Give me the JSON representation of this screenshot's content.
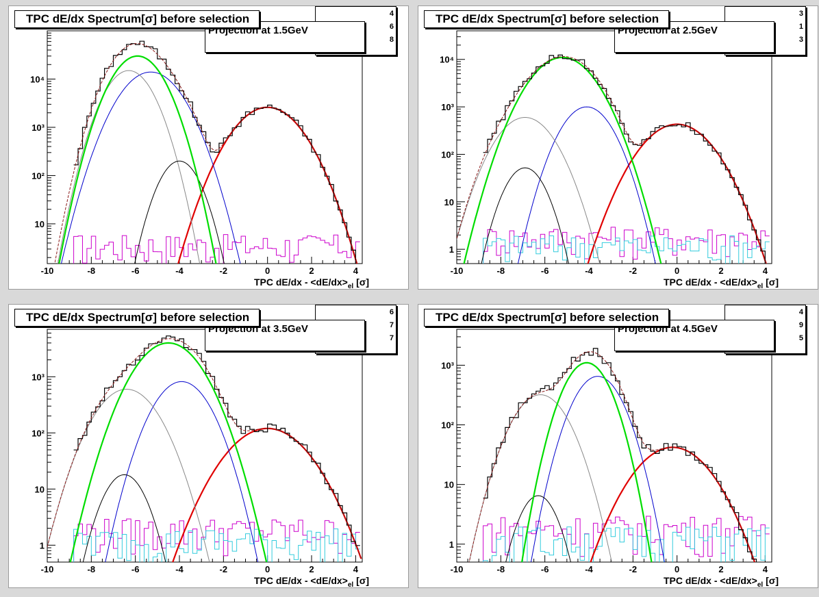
{
  "colors": {
    "data": "#000000",
    "total_fit": "#8b1a1a",
    "electron": "#e00000",
    "kaon": "#0000cc",
    "proton": "#888888",
    "deuteron": "#000000",
    "pion": "#00dd00",
    "magenta": "#cc00cc",
    "cyan": "#33ccdd"
  },
  "panels": [
    {
      "title": "TPC dE/dx Spectrum[σ] before selection",
      "legend_text": "Projection at 1.5GeV",
      "stat_digits": [
        "4",
        "6",
        "8"
      ],
      "xlabel": "TPC dE/dx - <dE/dx>|el [σ]",
      "xlabel_main": "TPC dE/dx - <dE/dx>",
      "xlabel_sub": "el",
      "xlabel_tail": "[σ]"
    },
    {
      "title": "TPC dE/dx Spectrum[σ] before selection",
      "legend_text": "Projection at 2.5GeV",
      "stat_digits": [
        "3",
        "1",
        "3"
      ],
      "xlabel": "TPC dE/dx - <dE/dx>|el [σ]",
      "xlabel_main": "TPC dE/dx - <dE/dx>",
      "xlabel_sub": "el",
      "xlabel_tail": "[σ]"
    },
    {
      "title": "TPC dE/dx Spectrum[σ] before selection",
      "legend_text": "Projection at 3.5GeV",
      "stat_digits": [
        "6",
        "7",
        "7"
      ],
      "xlabel": "TPC dE/dx - <dE/dx>|el [σ]",
      "xlabel_main": "TPC dE/dx - <dE/dx>",
      "xlabel_sub": "el",
      "xlabel_tail": "[σ]"
    },
    {
      "title": "TPC dE/dx Spectrum[σ] before selection",
      "legend_text": "Projection at 4.5GeV",
      "stat_digits": [
        "4",
        "9",
        "5"
      ],
      "xlabel": "TPC dE/dx - <dE/dx>|el [σ]",
      "xlabel_main": "TPC dE/dx - <dE/dx>",
      "xlabel_sub": "el",
      "xlabel_tail": "[σ]"
    }
  ],
  "chart_data": [
    {
      "type": "line",
      "log_y": true,
      "xlim": [
        -10,
        4.3
      ],
      "ylim": [
        1.5,
        100000
      ],
      "xticks": [
        -10,
        -8,
        -6,
        -4,
        -2,
        0,
        2,
        4
      ],
      "yticks": [
        {
          "value": 10,
          "label": "10"
        },
        {
          "value": 100,
          "label": "10²"
        },
        {
          "value": 1000,
          "label": "10³"
        },
        {
          "value": 10000,
          "label": "10⁴"
        }
      ],
      "components": [
        {
          "species": "electron",
          "amp": 2600,
          "mean": 0,
          "sigma": 1.05
        },
        {
          "species": "kaon",
          "amp": 14000,
          "mean": -5.3,
          "sigma": 0.95
        },
        {
          "species": "proton",
          "amp": 15000,
          "mean": -6.3,
          "sigma": 0.75
        },
        {
          "species": "deuteron",
          "amp": 200,
          "mean": -4,
          "sigma": 0.65
        },
        {
          "species": "pion",
          "amp": 30000,
          "mean": -5.9,
          "sigma": 0.8
        }
      ],
      "noise_level": 3
    },
    {
      "type": "line",
      "log_y": true,
      "xlim": [
        -10,
        4.3
      ],
      "ylim": [
        0.5,
        40000
      ],
      "xticks": [
        -10,
        -8,
        -6,
        -4,
        -2,
        0,
        2,
        4
      ],
      "yticks": [
        {
          "value": 1,
          "label": "1"
        },
        {
          "value": 10,
          "label": "10"
        },
        {
          "value": 100,
          "label": "10²"
        },
        {
          "value": 1000,
          "label": "10³"
        },
        {
          "value": 10000,
          "label": "10⁴"
        }
      ],
      "components": [
        {
          "species": "electron",
          "amp": 430,
          "mean": 0,
          "sigma": 1.1
        },
        {
          "species": "kaon",
          "amp": 1000,
          "mean": -4.1,
          "sigma": 0.8
        },
        {
          "species": "proton",
          "amp": 600,
          "mean": -6.9,
          "sigma": 0.9
        },
        {
          "species": "deuteron",
          "amp": 52,
          "mean": -6.9,
          "sigma": 0.65
        },
        {
          "species": "pion",
          "amp": 11000,
          "mean": -5.2,
          "sigma": 1.0
        }
      ],
      "noise_level": 1.5
    },
    {
      "type": "line",
      "log_y": true,
      "xlim": [
        -10,
        4.3
      ],
      "ylim": [
        0.5,
        7000
      ],
      "xticks": [
        -10,
        -8,
        -6,
        -4,
        -2,
        0,
        2,
        4
      ],
      "yticks": [
        {
          "value": 1,
          "label": "1"
        },
        {
          "value": 10,
          "label": "10"
        },
        {
          "value": 100,
          "label": "10²"
        },
        {
          "value": 1000,
          "label": "10³"
        }
      ],
      "components": [
        {
          "species": "electron",
          "amp": 120,
          "mean": 0,
          "sigma": 1.3
        },
        {
          "species": "kaon",
          "amp": 820,
          "mean": -3.9,
          "sigma": 0.9
        },
        {
          "species": "proton",
          "amp": 600,
          "mean": -6.4,
          "sigma": 1.0
        },
        {
          "species": "deuteron",
          "amp": 18,
          "mean": -6.5,
          "sigma": 0.7
        },
        {
          "species": "pion",
          "amp": 4000,
          "mean": -4.5,
          "sigma": 1.05
        }
      ],
      "noise_level": 1.5
    },
    {
      "type": "line",
      "log_y": true,
      "xlim": [
        -10,
        4.3
      ],
      "ylim": [
        0.5,
        4000
      ],
      "xticks": [
        -10,
        -8,
        -6,
        -4,
        -2,
        0,
        2,
        4
      ],
      "yticks": [
        {
          "value": 1,
          "label": "1"
        },
        {
          "value": 10,
          "label": "10"
        },
        {
          "value": 100,
          "label": "10²"
        },
        {
          "value": 1000,
          "label": "10³"
        }
      ],
      "components": [
        {
          "species": "electron",
          "amp": 42,
          "mean": -0.2,
          "sigma": 1.25
        },
        {
          "species": "kaon",
          "amp": 650,
          "mean": -3.6,
          "sigma": 0.8
        },
        {
          "species": "proton",
          "amp": 320,
          "mean": -6.2,
          "sigma": 0.9
        },
        {
          "species": "deuteron",
          "amp": 6.5,
          "mean": -6.3,
          "sigma": 0.65
        },
        {
          "species": "pion",
          "amp": 1100,
          "mean": -4.1,
          "sigma": 0.75
        }
      ],
      "noise_level": 1.5
    }
  ]
}
